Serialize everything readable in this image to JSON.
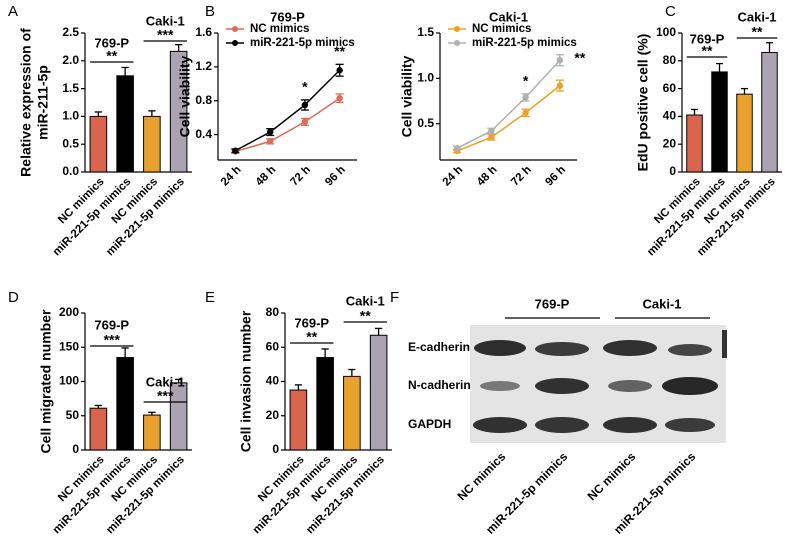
{
  "chart_data": [
    {
      "type": "bar",
      "label": "A",
      "ylabel": [
        "Relative expression of",
        "miR-211-5p"
      ],
      "categories": [
        "NC mimics",
        "miR-221-5p mimics",
        "NC mimics",
        "miR-221-5p mimics"
      ],
      "values": [
        1.0,
        1.73,
        1.0,
        2.17
      ],
      "errors": [
        0.08,
        0.15,
        0.1,
        0.12
      ],
      "colors": [
        "#d9654f",
        "#000000",
        "#e9a12e",
        "#aaa4b2"
      ],
      "ylim": [
        0,
        2.5
      ],
      "yticks": [
        {
          "value": 0,
          "label": "0.0"
        },
        0.5,
        {
          "value": 1,
          "label": "1.0"
        },
        1.5,
        {
          "value": 2,
          "label": "2.0"
        },
        2.5
      ],
      "groups": [
        {
          "name": "769-P",
          "significance": "**"
        },
        {
          "name": "Caki-1",
          "significance": "***"
        }
      ]
    },
    {
      "type": "line",
      "label": "B",
      "title": "769-P",
      "ylabel": "Cell viability",
      "categories": [
        "24 h",
        "48 h",
        "72 h",
        "96 h"
      ],
      "series": [
        {
          "name": "NC mimics",
          "color": "#e06a58",
          "values": [
            0.2,
            0.32,
            0.55,
            0.83
          ],
          "errors": [
            0.02,
            0.03,
            0.04,
            0.05
          ]
        },
        {
          "name": "miR-221-5p mimics",
          "color": "#000000",
          "values": [
            0.21,
            0.43,
            0.75,
            1.16
          ],
          "errors": [
            0.02,
            0.04,
            0.06,
            0.07
          ]
        }
      ],
      "ylim": [
        0.1,
        1.6
      ],
      "yticks": [
        0.4,
        0.8,
        1.2,
        1.6
      ],
      "annotations": [
        "*",
        "**"
      ]
    },
    {
      "type": "line",
      "title": "Caki-1",
      "ylabel": "Cell viability",
      "categories": [
        "24 h",
        "48 h",
        "72 h",
        "96 h"
      ],
      "series": [
        {
          "name": "NC mimics",
          "color": "#f0a020",
          "values": [
            0.2,
            0.35,
            0.62,
            0.92
          ],
          "errors": [
            0.02,
            0.03,
            0.04,
            0.06
          ]
        },
        {
          "name": "miR-221-5p mimics",
          "color": "#b0b0b0",
          "values": [
            0.23,
            0.42,
            0.79,
            1.2
          ],
          "errors": [
            0.02,
            0.03,
            0.04,
            0.06
          ]
        }
      ],
      "ylim": [
        0.1,
        1.5
      ],
      "yticks": [
        0.5,
        {
          "value": 1,
          "label": "1.0"
        },
        1.5
      ],
      "annotations": [
        "*",
        "**"
      ]
    },
    {
      "type": "bar",
      "label": "C",
      "ylabel": "EdU positive cell (%)",
      "categories": [
        "NC mimics",
        "miR-221-5p mimics",
        "NC mimics",
        "miR-221-5p mimics"
      ],
      "values": [
        41,
        72,
        56,
        86
      ],
      "errors": [
        4,
        6,
        4,
        7
      ],
      "colors": [
        "#d9654f",
        "#000000",
        "#e9a12e",
        "#aaa4b2"
      ],
      "ylim": [
        0,
        100
      ],
      "yticks": [
        0,
        20,
        40,
        60,
        80,
        100
      ],
      "groups": [
        {
          "name": "769-P",
          "significance": "**"
        },
        {
          "name": "Caki-1",
          "significance": "**"
        }
      ]
    },
    {
      "type": "bar",
      "label": "D",
      "ylabel": "Cell migrated number",
      "categories": [
        "NC mimics",
        "miR-221-5p mimics",
        "NC mimics",
        "miR-221-5p mimics"
      ],
      "values": [
        61,
        135,
        51,
        98
      ],
      "errors": [
        4,
        14,
        4,
        5
      ],
      "colors": [
        "#d9654f",
        "#000000",
        "#e9a12e",
        "#aaa4b2"
      ],
      "ylim": [
        0,
        200
      ],
      "yticks": [
        0,
        50,
        100,
        150,
        200
      ],
      "groups": [
        {
          "name": "769-P",
          "significance": "***"
        },
        {
          "name": "Caki-1",
          "significance": "***"
        }
      ]
    },
    {
      "type": "bar",
      "label": "E",
      "ylabel": "Cell invasion number",
      "categories": [
        "NC mimics",
        "miR-221-5p mimics",
        "NC mimics",
        "miR-221-5p mimics"
      ],
      "values": [
        35,
        54,
        43,
        67
      ],
      "errors": [
        3,
        5,
        4,
        4
      ],
      "colors": [
        "#d9654f",
        "#000000",
        "#e9a12e",
        "#aaa4b2"
      ],
      "ylim": [
        0,
        80
      ],
      "yticks": [
        0,
        20,
        40,
        60,
        80
      ],
      "groups": [
        {
          "name": "769-P",
          "significance": "**"
        },
        {
          "name": "Caki-1",
          "significance": "**"
        }
      ]
    }
  ],
  "blot": {
    "label": "F",
    "groups": [
      "769-P",
      "Caki-1"
    ],
    "rows": [
      "E-cadherin",
      "N-cadherin",
      "GAPDH"
    ],
    "lanes": [
      "NC mimics",
      "miR-221-5p mimics",
      "NC mimics",
      "miR-221-5p mimics"
    ]
  }
}
